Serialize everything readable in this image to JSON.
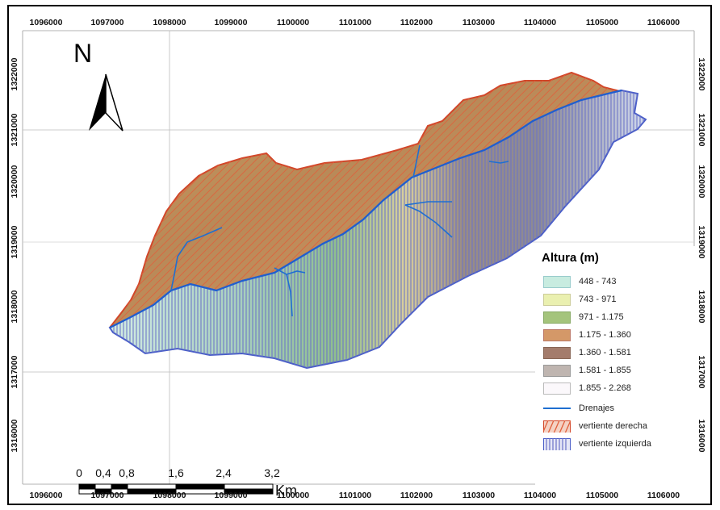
{
  "map": {
    "ticks_top": [
      "1096000",
      "1097000",
      "1098000",
      "1099000",
      "1100000",
      "1101000",
      "1102000",
      "1103000",
      "1104000",
      "1105000",
      "1106000"
    ],
    "ticks_bottom": [
      "1096000",
      "1097000",
      "1098000",
      "1099000",
      "1100000",
      "1101000",
      "1102000",
      "1103000",
      "1104000",
      "1105000",
      "1106000"
    ],
    "ticks_left": [
      "1322000",
      "1321000",
      "1320000",
      "1319000",
      "1318000",
      "1317000",
      "1316000"
    ],
    "ticks_right": [
      "1322000",
      "1321000",
      "1320000",
      "1319000",
      "1318000",
      "1317000",
      "1316000"
    ],
    "north_arrow": {
      "letter": "N",
      "icon": "north-arrow-icon"
    }
  },
  "legend": {
    "title": "Altura (m)",
    "classes": [
      {
        "label": "448 - 743",
        "color": "#c8ece0"
      },
      {
        "label": "743 - 971",
        "color": "#eaf0b0"
      },
      {
        "label": "971 - 1.175",
        "color": "#a4c47c"
      },
      {
        "label": "1.175 - 1.360",
        "color": "#d49868"
      },
      {
        "label": "1.360 - 1.581",
        "color": "#a47c6c"
      },
      {
        "label": "1.581 - 1.855",
        "color": "#bfb5b0"
      },
      {
        "label": "1.855 - 2.268",
        "color": "#fbf8fb"
      }
    ],
    "drainage": {
      "label": "Drenajes",
      "color": "#1f6fd1"
    },
    "right_slope": {
      "label": "vertiente derecha",
      "color": "#d9502b"
    },
    "left_slope": {
      "label": "vertiente izquierda",
      "color": "#5a6fd0"
    }
  },
  "scalebar": {
    "labels": [
      "0",
      "0,4",
      "0,8",
      "1,6",
      "2,4",
      "3,2"
    ],
    "unit": "Km"
  }
}
